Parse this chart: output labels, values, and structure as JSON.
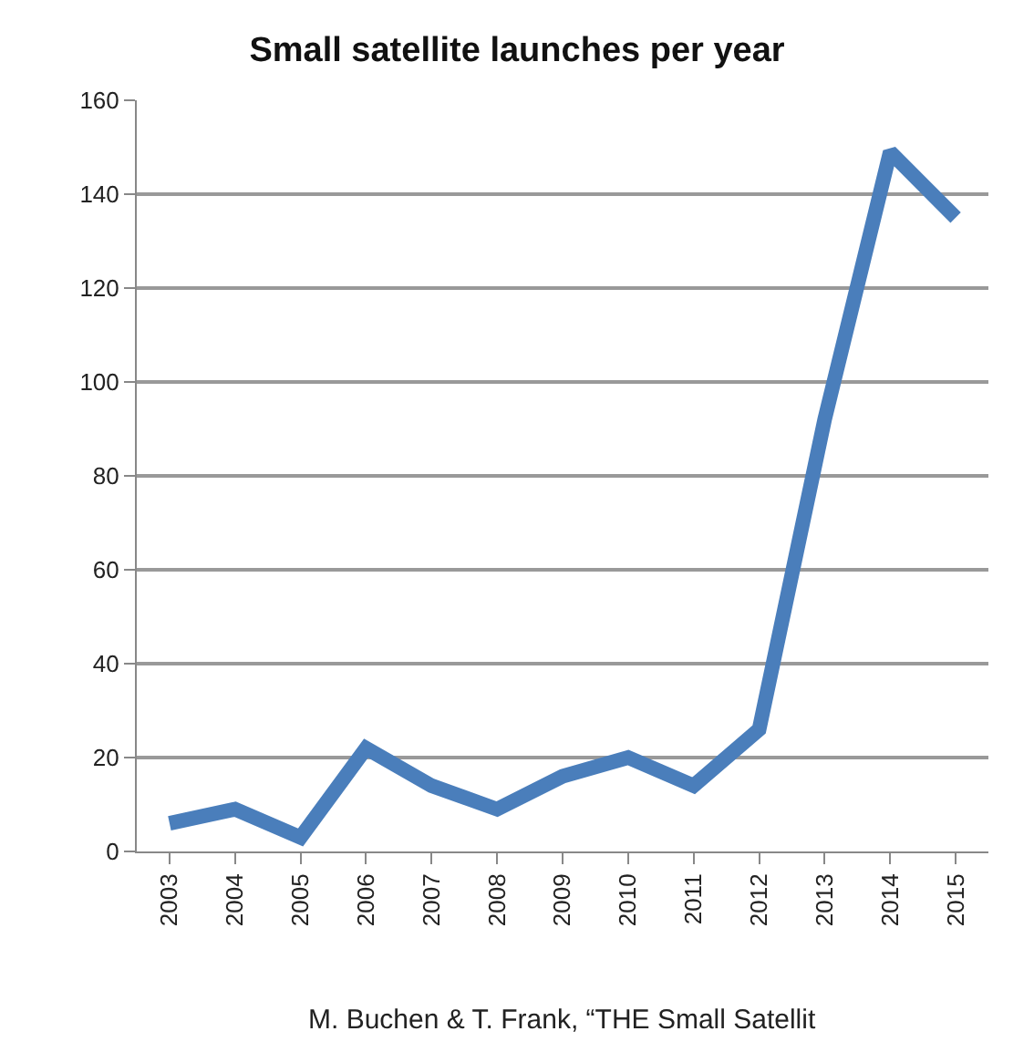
{
  "chart_data": {
    "type": "line",
    "title": "Small satellite launches per year",
    "categories": [
      "2003",
      "2004",
      "2005",
      "2006",
      "2007",
      "2008",
      "2009",
      "2010",
      "2011",
      "2012",
      "2013",
      "2014",
      "2015"
    ],
    "series": [
      {
        "color": "#4a7ebb",
        "values": [
          6,
          9,
          3,
          22,
          14,
          9,
          16,
          20,
          14,
          26,
          92,
          149,
          135
        ]
      }
    ],
    "ylim": [
      0,
      160
    ],
    "yticks": [
      0,
      20,
      40,
      60,
      80,
      100,
      120,
      140,
      160
    ],
    "grid": "y",
    "marker": "none",
    "line_style": "solid",
    "annotations": [
      "M. Buchen & T. Frank, “THE Small Satellit"
    ]
  }
}
